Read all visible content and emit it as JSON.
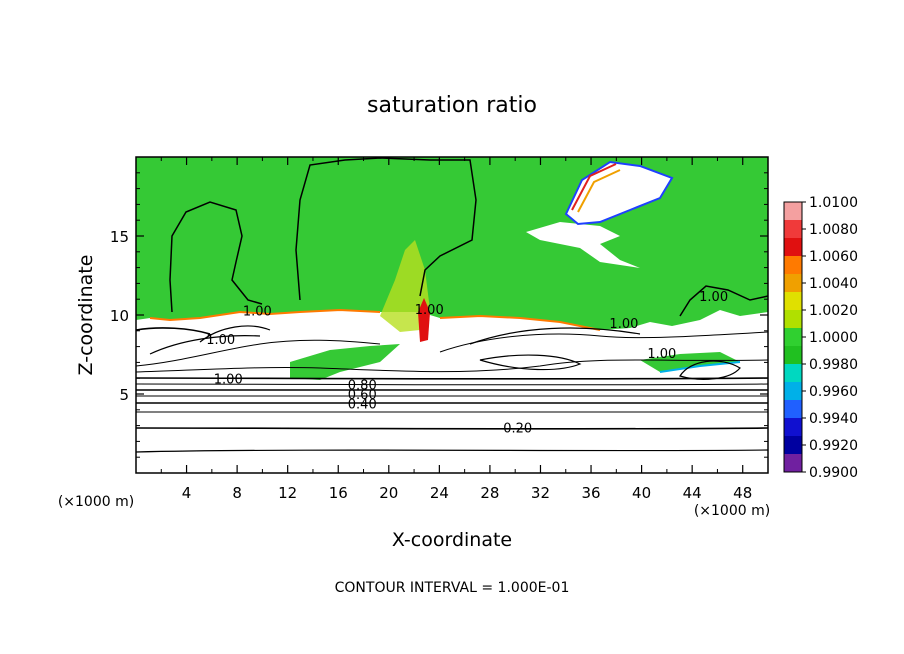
{
  "chart_data": {
    "type": "heatmap",
    "title": "saturation ratio",
    "xlabel": "X-coordinate",
    "ylabel": "Z-coordinate",
    "x_unit_left": "(×1000 m)",
    "x_unit_right": "(×1000 m)",
    "xlim": [
      0,
      50
    ],
    "ylim": [
      0,
      20
    ],
    "x_ticks": [
      "4",
      "8",
      "12",
      "16",
      "20",
      "24",
      "28",
      "32",
      "36",
      "40",
      "44",
      "48"
    ],
    "x_tick_values": [
      4,
      8,
      12,
      16,
      20,
      24,
      28,
      32,
      36,
      40,
      44,
      48
    ],
    "y_ticks": [
      "5",
      "10",
      "15"
    ],
    "y_tick_values": [
      5,
      10,
      15
    ],
    "colorbar": {
      "labels": [
        "1.0100",
        "1.0080",
        "1.0060",
        "1.0040",
        "1.0020",
        "1.0000",
        "0.9980",
        "0.9960",
        "0.9940",
        "0.9920",
        "0.9900"
      ],
      "colors": [
        "#f4a0a0",
        "#f03a3a",
        "#e01010",
        "#ff7a00",
        "#f0a000",
        "#e0e000",
        "#b0e000",
        "#30d030",
        "#20c020",
        "#00d8c0",
        "#00b0e8",
        "#2060ff",
        "#1010d0",
        "#0000a0",
        "#7020a0"
      ],
      "range": [
        0.99,
        1.01
      ]
    },
    "contour_labels": [
      {
        "text": "1.00",
        "x": 9.6,
        "z": 10.1
      },
      {
        "text": "1.00",
        "x": 23.2,
        "z": 10.2
      },
      {
        "text": "1.00",
        "x": 45.7,
        "z": 11.0
      },
      {
        "text": "1.00",
        "x": 38.6,
        "z": 9.3
      },
      {
        "text": "1.00",
        "x": 6.7,
        "z": 8.3
      },
      {
        "text": "1.00",
        "x": 41.6,
        "z": 7.4
      },
      {
        "text": "1.00",
        "x": 7.3,
        "z": 5.8
      },
      {
        "text": "0.80",
        "x": 17.9,
        "z": 5.4
      },
      {
        "text": "0.60",
        "x": 17.9,
        "z": 4.8
      },
      {
        "text": "0.40",
        "x": 17.9,
        "z": 4.2
      },
      {
        "text": "0.20",
        "x": 30.2,
        "z": 2.7
      }
    ],
    "footer": "CONTOUR INTERVAL = 1.000E-01"
  }
}
